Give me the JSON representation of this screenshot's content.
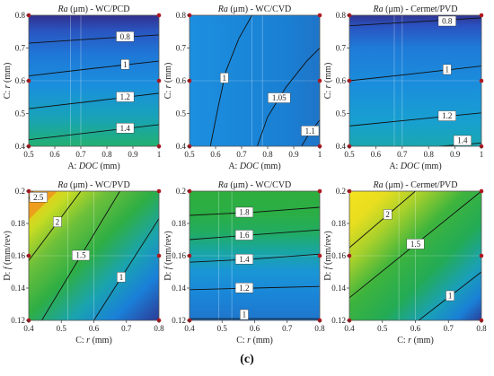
{
  "colors": {
    "dark": "#2e2a8c",
    "blue": "#1f6fd0",
    "light": "#2aa8e8",
    "green": "#2fae3e",
    "yellow": "#f2e21e",
    "orange": "#f08a1e"
  },
  "caption": "(c)",
  "chart_data": [
    {
      "type": "heatmap",
      "title_var": "Ra",
      "title_rest": " (μm) - WC/PCD",
      "xlabel_pre": "A: ",
      "xlabel_var": "DOC",
      "xlabel_post": " (mm)",
      "ylabel_pre": "C: ",
      "ylabel_var": "r",
      "ylabel_post": " (mm)",
      "xlim": [
        0.5,
        1
      ],
      "ylim": [
        0.4,
        0.8
      ],
      "xticks": [
        "0.5",
        "0.6",
        "0.7",
        "0.8",
        "0.9",
        "1"
      ],
      "yticks": [
        "0.4",
        "0.5",
        "0.6",
        "0.7",
        "0.8"
      ],
      "grid": [
        [
          0.66,
          0.7
        ]
      ],
      "gradient_direction": "vertical",
      "gradient": [
        [
          "0%",
          "#31318f"
        ],
        [
          "12%",
          "#2a55c0"
        ],
        [
          "30%",
          "#1f78d8"
        ],
        [
          "55%",
          "#1a90dc"
        ],
        [
          "78%",
          "#18a3b8"
        ],
        [
          "100%",
          "#22b070"
        ]
      ],
      "contours": [
        {
          "label": "0.8",
          "points": [
            [
              0.5,
              0.715
            ],
            [
              0.75,
              0.728
            ],
            [
              1,
              0.74
            ]
          ],
          "label_at": 0.74
        },
        {
          "label": "1",
          "points": [
            [
              0.5,
              0.615
            ],
            [
              0.75,
              0.638
            ],
            [
              1,
              0.66
            ]
          ],
          "label_at": 0.74
        },
        {
          "label": "1.2",
          "points": [
            [
              0.5,
              0.515
            ],
            [
              0.75,
              0.538
            ],
            [
              1,
              0.562
            ]
          ],
          "label_at": 0.74
        },
        {
          "label": "1.4",
          "points": [
            [
              0.5,
              0.42
            ],
            [
              0.75,
              0.443
            ],
            [
              1,
              0.466
            ]
          ],
          "label_at": 0.74
        }
      ]
    },
    {
      "type": "heatmap",
      "title_var": "Ra",
      "title_rest": " (μm) - WC/CVD",
      "xlabel_pre": "A: ",
      "xlabel_var": "DOC",
      "xlabel_post": " (mm)",
      "ylabel_pre": "C: ",
      "ylabel_var": "r",
      "ylabel_post": " (mm)",
      "xlim": [
        0.5,
        1
      ],
      "ylim": [
        0.4,
        0.8
      ],
      "xticks": [
        "0.5",
        "0.6",
        "0.7",
        "0.8",
        "0.9",
        "1"
      ],
      "yticks": [
        "0.4",
        "0.5",
        "0.6",
        "0.7",
        "0.8"
      ],
      "grid": [
        [
          0.74,
          0.78
        ]
      ],
      "gradient_direction": "horizontal",
      "gradient": [
        [
          "0%",
          "#1d8fe0"
        ],
        [
          "45%",
          "#1a86d8"
        ],
        [
          "75%",
          "#1a7fd2"
        ],
        [
          "100%",
          "#1f74c8"
        ]
      ],
      "contours": [
        {
          "label": "1",
          "points": [
            [
              0.58,
              0.4
            ],
            [
              0.61,
              0.52
            ],
            [
              0.64,
              0.63
            ],
            [
              0.69,
              0.73
            ],
            [
              0.74,
              0.8
            ]
          ],
          "label_at": 0.5
        },
        {
          "label": "1.05",
          "points": [
            [
              0.76,
              0.4
            ],
            [
              0.8,
              0.49
            ],
            [
              0.87,
              0.58
            ],
            [
              0.95,
              0.66
            ],
            [
              1,
              0.7
            ]
          ],
          "label_at": 0.45
        },
        {
          "label": "1.1",
          "points": [
            [
              0.93,
              0.4
            ],
            [
              0.96,
              0.44
            ],
            [
              1,
              0.48
            ]
          ],
          "label_at": 0.55
        }
      ]
    },
    {
      "type": "heatmap",
      "title_var": "Ra",
      "title_rest": " (μm) - Cermet/PVD",
      "xlabel_pre": "A: ",
      "xlabel_var": "DOC",
      "xlabel_post": " (mm)",
      "ylabel_pre": "C: ",
      "ylabel_var": "r",
      "ylabel_post": " (mm)",
      "xlim": [
        0.5,
        1
      ],
      "ylim": [
        0.4,
        0.8
      ],
      "xticks": [
        "0.5",
        "0.6",
        "0.7",
        "0.8",
        "0.9",
        "1"
      ],
      "yticks": [
        "0.4",
        "0.5",
        "0.6",
        "0.7",
        "0.8"
      ],
      "grid": [
        [
          0.67,
          0.7
        ]
      ],
      "gradient_direction": "vertical",
      "gradient": [
        [
          "0%",
          "#30358f"
        ],
        [
          "8%",
          "#2a52c0"
        ],
        [
          "25%",
          "#1f7bd8"
        ],
        [
          "55%",
          "#1a8fdc"
        ],
        [
          "82%",
          "#18a0cf"
        ],
        [
          "100%",
          "#1aa7b0"
        ]
      ],
      "contours": [
        {
          "label": "0.8",
          "points": [
            [
              0.5,
              0.768
            ],
            [
              0.75,
              0.78
            ],
            [
              1,
              0.792
            ]
          ],
          "label_at": 0.74
        },
        {
          "label": "1",
          "points": [
            [
              0.5,
              0.6
            ],
            [
              0.75,
              0.622
            ],
            [
              1,
              0.645
            ]
          ],
          "label_at": 0.74
        },
        {
          "label": "1.2",
          "points": [
            [
              0.5,
              0.462
            ],
            [
              0.75,
              0.482
            ],
            [
              1,
              0.502
            ]
          ],
          "label_at": 0.74
        },
        {
          "label": "1.4",
          "points": [
            [
              0.84,
              0.4
            ],
            [
              0.93,
              0.405
            ],
            [
              1,
              0.41
            ]
          ],
          "label_at": 0.55
        }
      ]
    },
    {
      "type": "heatmap",
      "title_var": "Ra",
      "title_rest": " (μm) - WC/PVD",
      "xlabel_pre": "C: ",
      "xlabel_var": "r",
      "xlabel_post": " (mm)",
      "ylabel_pre": "D: ",
      "ylabel_var": "f",
      "ylabel_post": " (mm/rev)",
      "xlim": [
        0.4,
        0.8
      ],
      "ylim": [
        0.12,
        0.2
      ],
      "xticks": [
        "0.4",
        "0.5",
        "0.6",
        "0.7",
        "0.8"
      ],
      "yticks": [
        "0.12",
        "0.14",
        "0.16",
        "0.18",
        "0.2"
      ],
      "grid": [
        [
          0.52,
          0.6
        ]
      ],
      "gradient_direction": "diagonal",
      "gradient": [
        [
          "0%",
          "#f7e51c"
        ],
        [
          "6%",
          "#f5c818"
        ],
        [
          "16%",
          "#c8dc22"
        ],
        [
          "30%",
          "#6ec03a"
        ],
        [
          "48%",
          "#2eae44"
        ],
        [
          "66%",
          "#1aa3b0"
        ],
        [
          "82%",
          "#1a80d8"
        ],
        [
          "100%",
          "#2c3a96"
        ]
      ],
      "corner_overlay": true,
      "contours": [
        {
          "label": "2.5",
          "points": [
            [
              0.4,
              0.195
            ],
            [
              0.412,
              0.2
            ]
          ],
          "label_at": 0.2
        },
        {
          "label": "2",
          "points": [
            [
              0.4,
              0.157
            ],
            [
              0.56,
              0.2
            ]
          ],
          "label_at": 0.55
        },
        {
          "label": "1.5",
          "points": [
            [
              0.44,
              0.12
            ],
            [
              0.68,
              0.2
            ]
          ],
          "label_at": 0.5
        },
        {
          "label": "1",
          "points": [
            [
              0.6,
              0.12
            ],
            [
              0.8,
              0.183
            ]
          ],
          "label_at": 0.42
        }
      ]
    },
    {
      "type": "heatmap",
      "title_var": "Ra",
      "title_rest": " (μm) - WC/CVD",
      "xlabel_pre": "C: ",
      "xlabel_var": "r",
      "xlabel_post": " (mm)",
      "ylabel_pre": "D: ",
      "ylabel_var": "f",
      "ylabel_post": " (mm/rev)",
      "xlim": [
        0.4,
        0.8
      ],
      "ylim": [
        0.12,
        0.2
      ],
      "xticks": [
        "0.4",
        "0.5",
        "0.6",
        "0.7",
        "0.8"
      ],
      "yticks": [
        "0.12",
        "0.14",
        "0.16",
        "0.18",
        "0.2"
      ],
      "grid": [
        [
          0.49,
          0.53
        ]
      ],
      "gradient_direction": "vertical",
      "gradient": [
        [
          "0%",
          "#2fae3e"
        ],
        [
          "18%",
          "#2aae45"
        ],
        [
          "32%",
          "#22ac62"
        ],
        [
          "46%",
          "#19a6a0"
        ],
        [
          "62%",
          "#1a96d6"
        ],
        [
          "80%",
          "#1a86d8"
        ],
        [
          "100%",
          "#1f76cc"
        ]
      ],
      "contours": [
        {
          "label": "1.8",
          "points": [
            [
              0.4,
              0.185
            ],
            [
              0.6,
              0.187
            ],
            [
              0.8,
              0.19
            ]
          ],
          "label_at": 0.42
        },
        {
          "label": "1.6",
          "points": [
            [
              0.4,
              0.17
            ],
            [
              0.6,
              0.173
            ],
            [
              0.8,
              0.176
            ]
          ],
          "label_at": 0.42
        },
        {
          "label": "1.4",
          "points": [
            [
              0.4,
              0.156
            ],
            [
              0.6,
              0.158
            ],
            [
              0.8,
              0.161
            ]
          ],
          "label_at": 0.42
        },
        {
          "label": "1.2",
          "points": [
            [
              0.4,
              0.139
            ],
            [
              0.6,
              0.14
            ],
            [
              0.8,
              0.141
            ]
          ],
          "label_at": 0.42
        },
        {
          "label": "1",
          "points": [
            [
              0.4,
              0.121
            ],
            [
              0.6,
              0.121
            ],
            [
              0.8,
              0.121
            ]
          ],
          "label_at": 0.42
        }
      ]
    },
    {
      "type": "heatmap",
      "title_var": "Ra",
      "title_rest": " (μm) - Cermet/PVD",
      "xlabel_pre": "C: ",
      "xlabel_var": "r",
      "xlabel_post": " (mm)",
      "ylabel_pre": "D: ",
      "ylabel_var": "f",
      "ylabel_post": " (mm/rev)",
      "xlim": [
        0.4,
        0.8
      ],
      "ylim": [
        0.12,
        0.2
      ],
      "xticks": [
        "0.4",
        "0.5",
        "0.6",
        "0.7",
        "0.8"
      ],
      "yticks": [
        "0.12",
        "0.14",
        "0.16",
        "0.18",
        "0.2"
      ],
      "grid": [
        [
          0.55,
          0.6
        ]
      ],
      "gradient_direction": "diagonal",
      "gradient": [
        [
          "0%",
          "#f5e21d"
        ],
        [
          "14%",
          "#e8de1f"
        ],
        [
          "28%",
          "#a6d02c"
        ],
        [
          "44%",
          "#3eb43d"
        ],
        [
          "62%",
          "#23ab55"
        ],
        [
          "78%",
          "#1aa0b8"
        ],
        [
          "90%",
          "#1a7fd6"
        ],
        [
          "100%",
          "#2a3f9a"
        ]
      ],
      "contours": [
        {
          "label": "2",
          "points": [
            [
              0.4,
              0.165
            ],
            [
              0.6,
              0.2
            ]
          ],
          "label_at": 0.58
        },
        {
          "label": "1.5",
          "points": [
            [
              0.4,
              0.134
            ],
            [
              0.8,
              0.2
            ]
          ],
          "label_at": 0.5
        },
        {
          "label": "1",
          "points": [
            [
              0.61,
              0.12
            ],
            [
              0.8,
              0.15
            ]
          ],
          "label_at": 0.5
        }
      ]
    }
  ]
}
